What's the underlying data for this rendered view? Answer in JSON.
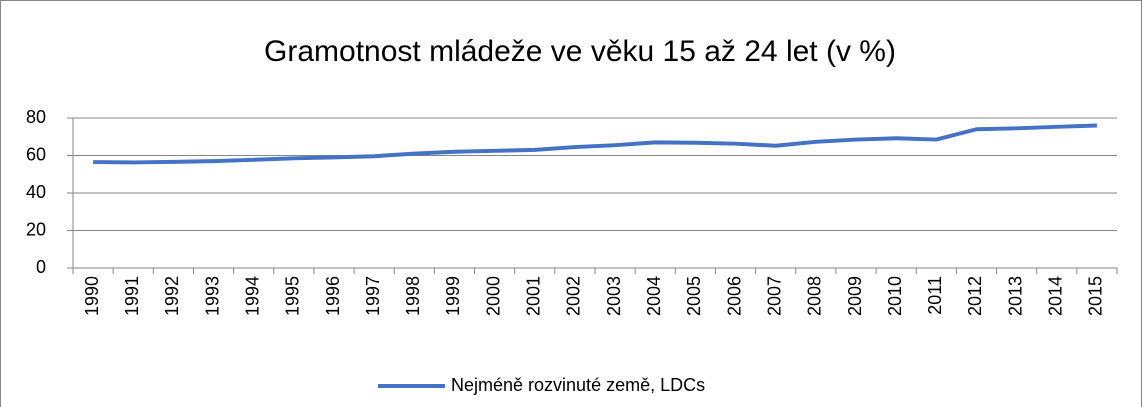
{
  "chart_data": {
    "type": "line",
    "title": "Gramotnost mládeže ve věku 15 až 24 let (v %)",
    "categories": [
      "1990",
      "1991",
      "1992",
      "1993",
      "1994",
      "1995",
      "1996",
      "1997",
      "1998",
      "1999",
      "2000",
      "2001",
      "2002",
      "2003",
      "2004",
      "2005",
      "2006",
      "2007",
      "2008",
      "2009",
      "2010",
      "2011",
      "2012",
      "2013",
      "2014",
      "2015"
    ],
    "series": [
      {
        "name": "Nejméně rozvinuté země, LDCs",
        "color": "#4472c4",
        "values": [
          56.5,
          56.3,
          56.6,
          57,
          57.7,
          58.5,
          59,
          59.6,
          61,
          62,
          62.5,
          63,
          64.5,
          65.5,
          67,
          66.8,
          66.3,
          65.2,
          67.3,
          68.5,
          69.2,
          68.5,
          74,
          74.5,
          75.3,
          76
        ]
      }
    ],
    "ylim": [
      0,
      80
    ],
    "yticks": [
      0,
      20,
      40,
      60,
      80
    ],
    "grid": true,
    "legend": "bottom"
  }
}
